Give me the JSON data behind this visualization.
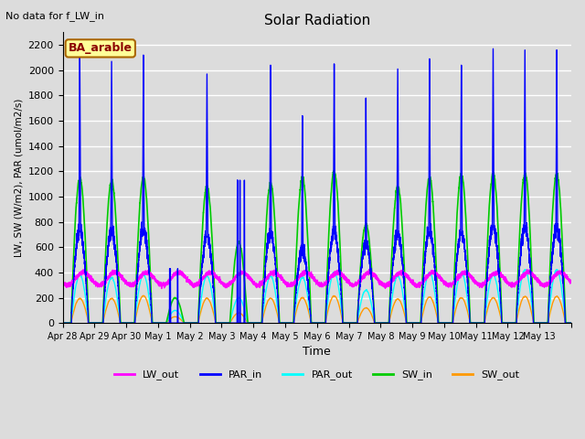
{
  "title": "Solar Radiation",
  "subtitle": "No data for f_LW_in",
  "xlabel": "Time",
  "ylabel": "LW, SW (W/m2), PAR (umol/m2/s)",
  "box_label": "BA_arable",
  "ylim": [
    0,
    2300
  ],
  "yticks": [
    0,
    200,
    400,
    600,
    800,
    1000,
    1200,
    1400,
    1600,
    1800,
    2000,
    2200
  ],
  "series": {
    "LW_out": {
      "color": "#ff00ff",
      "lw": 1.0
    },
    "PAR_in": {
      "color": "#0000ff",
      "lw": 1.0
    },
    "PAR_out": {
      "color": "#00ffff",
      "lw": 1.0
    },
    "SW_in": {
      "color": "#00cc00",
      "lw": 1.2
    },
    "SW_out": {
      "color": "#ff9900",
      "lw": 1.0
    }
  },
  "background_color": "#dcdcdc",
  "grid_color": "#ffffff",
  "n_days": 16,
  "day_labels": [
    "Apr 28",
    "Apr 29",
    "Apr 30",
    "May 1",
    "May 2",
    "May 3",
    "May 4",
    "May 5",
    "May 6",
    "May 7",
    "May 8",
    "May 9",
    "May 10",
    "May 11",
    "May 12",
    "May 13"
  ],
  "PAR_in_peaks": [
    2100,
    2070,
    2120,
    430,
    1970,
    1130,
    2040,
    1640,
    2050,
    1780,
    2010,
    2090,
    2040,
    2170,
    2160,
    2160
  ],
  "SW_in_peaks": [
    1150,
    1130,
    1150,
    200,
    1080,
    640,
    1100,
    1150,
    1200,
    780,
    1080,
    1150,
    1180,
    1180,
    1180,
    1180
  ],
  "PAR_out_peaks": [
    380,
    360,
    380,
    100,
    370,
    200,
    370,
    360,
    400,
    260,
    370,
    400,
    400,
    380,
    420,
    420
  ],
  "SW_out_peaks": [
    195,
    195,
    215,
    50,
    195,
    80,
    195,
    200,
    215,
    120,
    190,
    205,
    200,
    200,
    210,
    210
  ],
  "LW_out_base": 350,
  "LW_out_amp": 50,
  "cloudy_days": [
    3,
    5
  ],
  "spike_widths": [
    18,
    18,
    18,
    8,
    18,
    10,
    18,
    16,
    18,
    12,
    18,
    18,
    18,
    18,
    18,
    18
  ]
}
